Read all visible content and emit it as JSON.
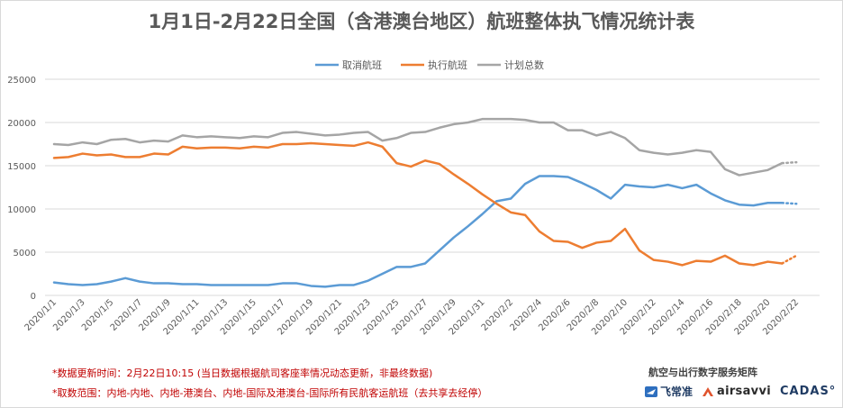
{
  "chart_data": {
    "type": "line",
    "title": "1月1日-2月22日全国（含港澳台地区）航班整体执飞情况统计表",
    "ylim": [
      0,
      25000
    ],
    "yticks": [
      0,
      5000,
      10000,
      15000,
      20000,
      25000
    ],
    "x_labels": [
      "2020/1/1",
      "2020/1/3",
      "2020/1/5",
      "2020/1/7",
      "2020/1/9",
      "2020/1/11",
      "2020/1/13",
      "2020/1/15",
      "2020/1/17",
      "2020/1/19",
      "2020/1/21",
      "2020/1/23",
      "2020/1/25",
      "2020/1/27",
      "2020/1/29",
      "2020/1/31",
      "2020/2/2",
      "2020/2/4",
      "2020/2/6",
      "2020/2/8",
      "2020/2/10",
      "2020/2/12",
      "2020/2/14",
      "2020/2/16",
      "2020/2/18",
      "2020/2/20",
      "2020/2/22"
    ],
    "legend_position": "top",
    "grid": "horizontal",
    "series": [
      {
        "name": "取消航班",
        "color": "#5b9bd5",
        "values": [
          1500,
          1300,
          1200,
          1300,
          1600,
          2000,
          1600,
          1400,
          1400,
          1300,
          1300,
          1200,
          1200,
          1200,
          1200,
          1200,
          1400,
          1400,
          1100,
          1000,
          1200,
          1200,
          1700,
          2500,
          3300,
          3300,
          3700,
          5200,
          6700,
          8000,
          9400,
          10900,
          11200,
          12900,
          13800,
          13800,
          13700,
          13000,
          12200,
          11200,
          12800,
          12600,
          12500,
          12800,
          12400,
          12800,
          11800,
          11000,
          10500,
          10400,
          10700,
          10700,
          10600
        ]
      },
      {
        "name": "执行航班",
        "color": "#ed7d31",
        "values": [
          15900,
          16000,
          16400,
          16200,
          16300,
          16000,
          16000,
          16400,
          16300,
          17200,
          17000,
          17100,
          17100,
          17000,
          17200,
          17100,
          17500,
          17500,
          17600,
          17500,
          17400,
          17300,
          17700,
          17200,
          15300,
          14900,
          15600,
          15200,
          14000,
          12900,
          11700,
          10600,
          9600,
          9300,
          7400,
          6300,
          6200,
          5500,
          6100,
          6300,
          7700,
          5200,
          4100,
          3900,
          3500,
          4000,
          3900,
          4600,
          3700,
          3500,
          3900,
          3700,
          4600
        ]
      },
      {
        "name": "计划总数",
        "color": "#a5a5a5",
        "values": [
          17500,
          17400,
          17700,
          17500,
          18000,
          18100,
          17700,
          17900,
          17800,
          18500,
          18300,
          18400,
          18300,
          18200,
          18400,
          18300,
          18800,
          18900,
          18700,
          18500,
          18600,
          18800,
          18900,
          17900,
          18200,
          18800,
          18900,
          19400,
          19800,
          20000,
          20400,
          20400,
          20400,
          20300,
          20000,
          20000,
          19100,
          19100,
          18500,
          18900,
          18200,
          16800,
          16500,
          16300,
          16500,
          16800,
          16600,
          14600,
          13900,
          14200,
          14500,
          15300,
          15400
        ]
      }
    ]
  },
  "notes": {
    "update_time": "*数据更新时间：2月22日10:15 (当日数据根据航司客座率情况动态更新，非最终数据)",
    "scope": "*取数范围：内地-内地、内地-港澳台、内地-国际及港澳台-国际所有民航客运航班（去共享去经停）"
  },
  "branding": {
    "tagline": "航空与出行数字服务矩阵",
    "logo_1": "飞常准",
    "logo_2": "airsavvi",
    "logo_3": "CADAS°"
  }
}
